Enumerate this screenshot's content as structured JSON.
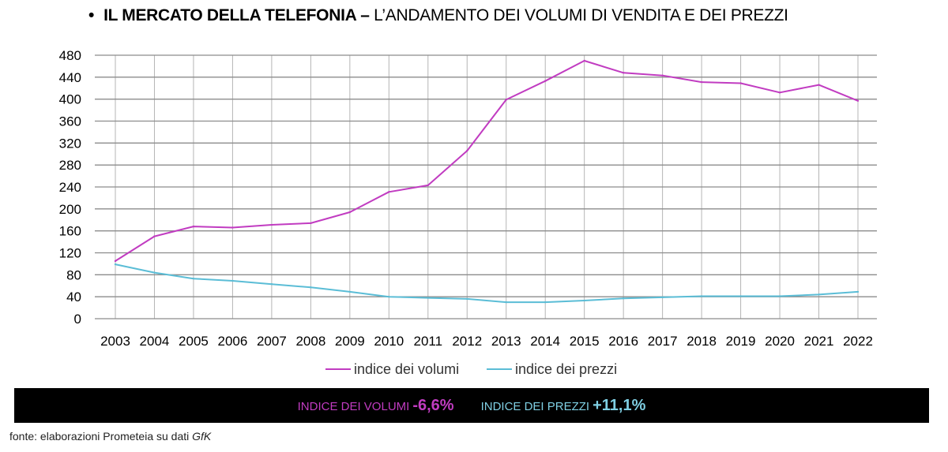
{
  "header": {
    "bullet": "•",
    "title_main": "IL MERCATO DELLA TELEFONIA –",
    "title_sub": "L’ANDAMENTO DEI VOLUMI DI VENDITA E DEI PREZZI"
  },
  "chart_data": {
    "type": "line",
    "categories": [
      "2003",
      "2004",
      "2005",
      "2006",
      "2007",
      "2008",
      "2009",
      "2010",
      "2011",
      "2012",
      "2013",
      "2014",
      "2015",
      "2016",
      "2017",
      "2018",
      "2019",
      "2020",
      "2021",
      "2022"
    ],
    "series": [
      {
        "name": "indice dei volumi",
        "color": "#c13cc1",
        "values": [
          105,
          150,
          168,
          166,
          171,
          174,
          194,
          231,
          243,
          306,
          399,
          433,
          470,
          448,
          443,
          431,
          429,
          412,
          426,
          397
        ]
      },
      {
        "name": "indice dei prezzi",
        "color": "#5bbdd6",
        "values": [
          99,
          84,
          73,
          69,
          63,
          57,
          49,
          40,
          38,
          36,
          30,
          30,
          33,
          37,
          39,
          41,
          41,
          41,
          44,
          49
        ]
      }
    ],
    "yticks": [
      0,
      40,
      80,
      120,
      160,
      200,
      240,
      280,
      320,
      360,
      400,
      440,
      480
    ],
    "ylim": [
      0,
      480
    ],
    "grid": true,
    "legend_position": "bottom"
  },
  "banner": {
    "volumi_label": "INDICE DEI VOLUMI",
    "volumi_value": "-6,6%",
    "prezzi_label": "INDICE DEI PREZZI",
    "prezzi_value": "+11,1%",
    "volumi_color": "#c13cc1",
    "prezzi_color": "#7fcfe3"
  },
  "source": {
    "text": "fonte: elaborazioni Prometeia su dati",
    "italic": "GfK"
  }
}
